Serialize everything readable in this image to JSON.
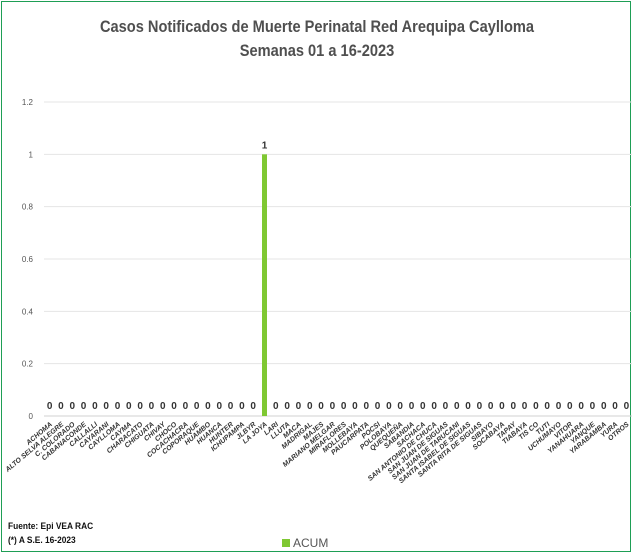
{
  "chart_data": {
    "type": "bar",
    "title": "Casos Notificados de Muerte Perinatal Red Arequipa Caylloma",
    "subtitle": "Semanas 01 a 16-2023",
    "categories": [
      "ACHOMA",
      "ALTO SELVA ALEGRE",
      "C. COLORADO",
      "CABANACONDE",
      "CALLALLI",
      "CAYARANI",
      "CAYLLOMA",
      "CAYMA",
      "CHARACATO",
      "CHIGUATA",
      "CHIVAY",
      "CHOCO",
      "COCACHACRA",
      "COPORAQUE",
      "HUAMBO",
      "HUANCA",
      "HUNTER",
      "ICHUPAMPA",
      "JLBYR",
      "LA JOYA",
      "LARI",
      "LLUTA",
      "MACA",
      "MADRIGAL",
      "MAJES",
      "MARIANO MELGAR",
      "MIRAFLORES",
      "MOLLEBAYA",
      "PAUCARPATA",
      "POCSI",
      "POLOBAYA",
      "QUEQUEÑA",
      "SABANDIA",
      "SACHACA",
      "SAN ANTONIO DE CHUCA",
      "SAN JUAN DE SIGUAS",
      "SAN JUAN DE TARUCANI",
      "SANTA ISABEL DE SIGUAS",
      "SANTA RITA DE SIGUAS",
      "SIBAYO",
      "SOCABAYA",
      "TAPAY",
      "TIABAYA",
      "TIS CO",
      "TUTI",
      "UCHUMAYO",
      "VITOR",
      "YANAHUARA",
      "YANQUE",
      "YARABAMBA",
      "YURA",
      "OTROS"
    ],
    "series": [
      {
        "name": "ACUM",
        "values": [
          0,
          0,
          0,
          0,
          0,
          0,
          0,
          0,
          0,
          0,
          0,
          0,
          0,
          0,
          0,
          0,
          0,
          0,
          0,
          1,
          0,
          0,
          0,
          0,
          0,
          0,
          0,
          0,
          0,
          0,
          0,
          0,
          0,
          0,
          0,
          0,
          0,
          0,
          0,
          0,
          0,
          0,
          0,
          0,
          0,
          0,
          0,
          0,
          0,
          0,
          0,
          0
        ]
      }
    ],
    "ylim": [
      0,
      1.2
    ],
    "yticks": [
      "0",
      "0.2",
      "0.4",
      "0.6",
      "0.8",
      "1",
      "1.2"
    ],
    "grid": true,
    "legend_position": "bottom",
    "bar_color": "#7fc832"
  },
  "notes": {
    "source": "Fuente: Epi VEA RAC",
    "period": "(*) A S.E. 16-2023"
  }
}
